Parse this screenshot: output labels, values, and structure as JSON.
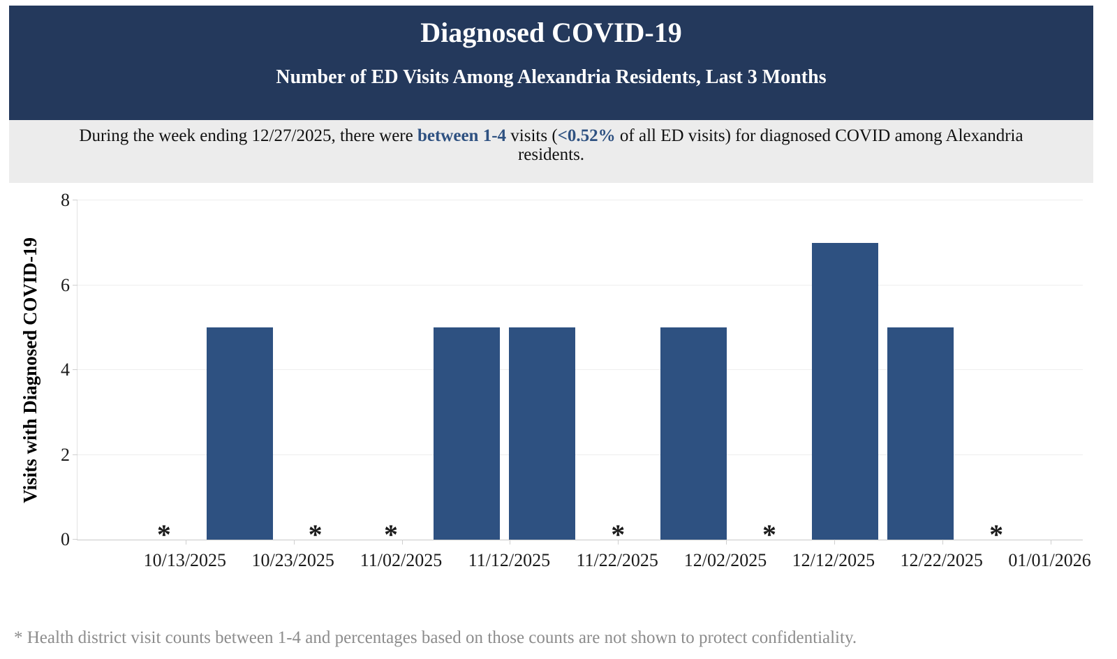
{
  "header": {
    "title": "Diagnosed COVID-19",
    "subtitle": "Number of ED Visits Among Alexandria Residents, Last 3 Months",
    "bg_color": "#24395c",
    "text_color": "#ffffff"
  },
  "summary": {
    "segments": [
      {
        "text": "During the week ending 12/27/2025, there were ",
        "bold": false
      },
      {
        "text": "between 1-4",
        "bold": true
      },
      {
        "text": " visits (",
        "bold": false
      },
      {
        "text": "<0.52%",
        "bold": true
      },
      {
        "text": " of all ED visits) for diagnosed COVID among Alexandria residents.",
        "bold": false
      }
    ],
    "highlight_color": "#2e5181",
    "bg_color": "#ececec"
  },
  "chart_data": {
    "type": "bar",
    "title": "",
    "xlabel": "",
    "ylabel": "Visits with Diagnosed COVID-19",
    "ylim": [
      0,
      8
    ],
    "yticks": [
      0,
      2,
      4,
      6,
      8
    ],
    "grid": true,
    "x_axis_range": [
      "10/03/2025",
      "01/04/2026"
    ],
    "xtick_labels": [
      "10/13/2025",
      "10/23/2025",
      "11/02/2025",
      "11/12/2025",
      "11/22/2025",
      "12/02/2025",
      "12/12/2025",
      "12/22/2025",
      "01/01/2026"
    ],
    "bar_color": "#2e5181",
    "suppressed_marker": "*",
    "points": [
      {
        "week_ending": "10/11/2025",
        "visits": null,
        "suppressed": true
      },
      {
        "week_ending": "10/18/2025",
        "visits": 5,
        "suppressed": false
      },
      {
        "week_ending": "10/25/2025",
        "visits": null,
        "suppressed": true
      },
      {
        "week_ending": "11/01/2025",
        "visits": null,
        "suppressed": true
      },
      {
        "week_ending": "11/08/2025",
        "visits": 5,
        "suppressed": false
      },
      {
        "week_ending": "11/15/2025",
        "visits": 5,
        "suppressed": false
      },
      {
        "week_ending": "11/22/2025",
        "visits": null,
        "suppressed": true
      },
      {
        "week_ending": "11/29/2025",
        "visits": 5,
        "suppressed": false
      },
      {
        "week_ending": "12/06/2025",
        "visits": null,
        "suppressed": true
      },
      {
        "week_ending": "12/13/2025",
        "visits": 7,
        "suppressed": false
      },
      {
        "week_ending": "12/20/2025",
        "visits": 5,
        "suppressed": false
      },
      {
        "week_ending": "12/27/2025",
        "visits": null,
        "suppressed": true
      }
    ]
  },
  "footnote": {
    "text": "* Health district visit counts between 1-4 and percentages based on those counts are not shown to protect confidentiality.",
    "color": "#8c8c8c"
  }
}
